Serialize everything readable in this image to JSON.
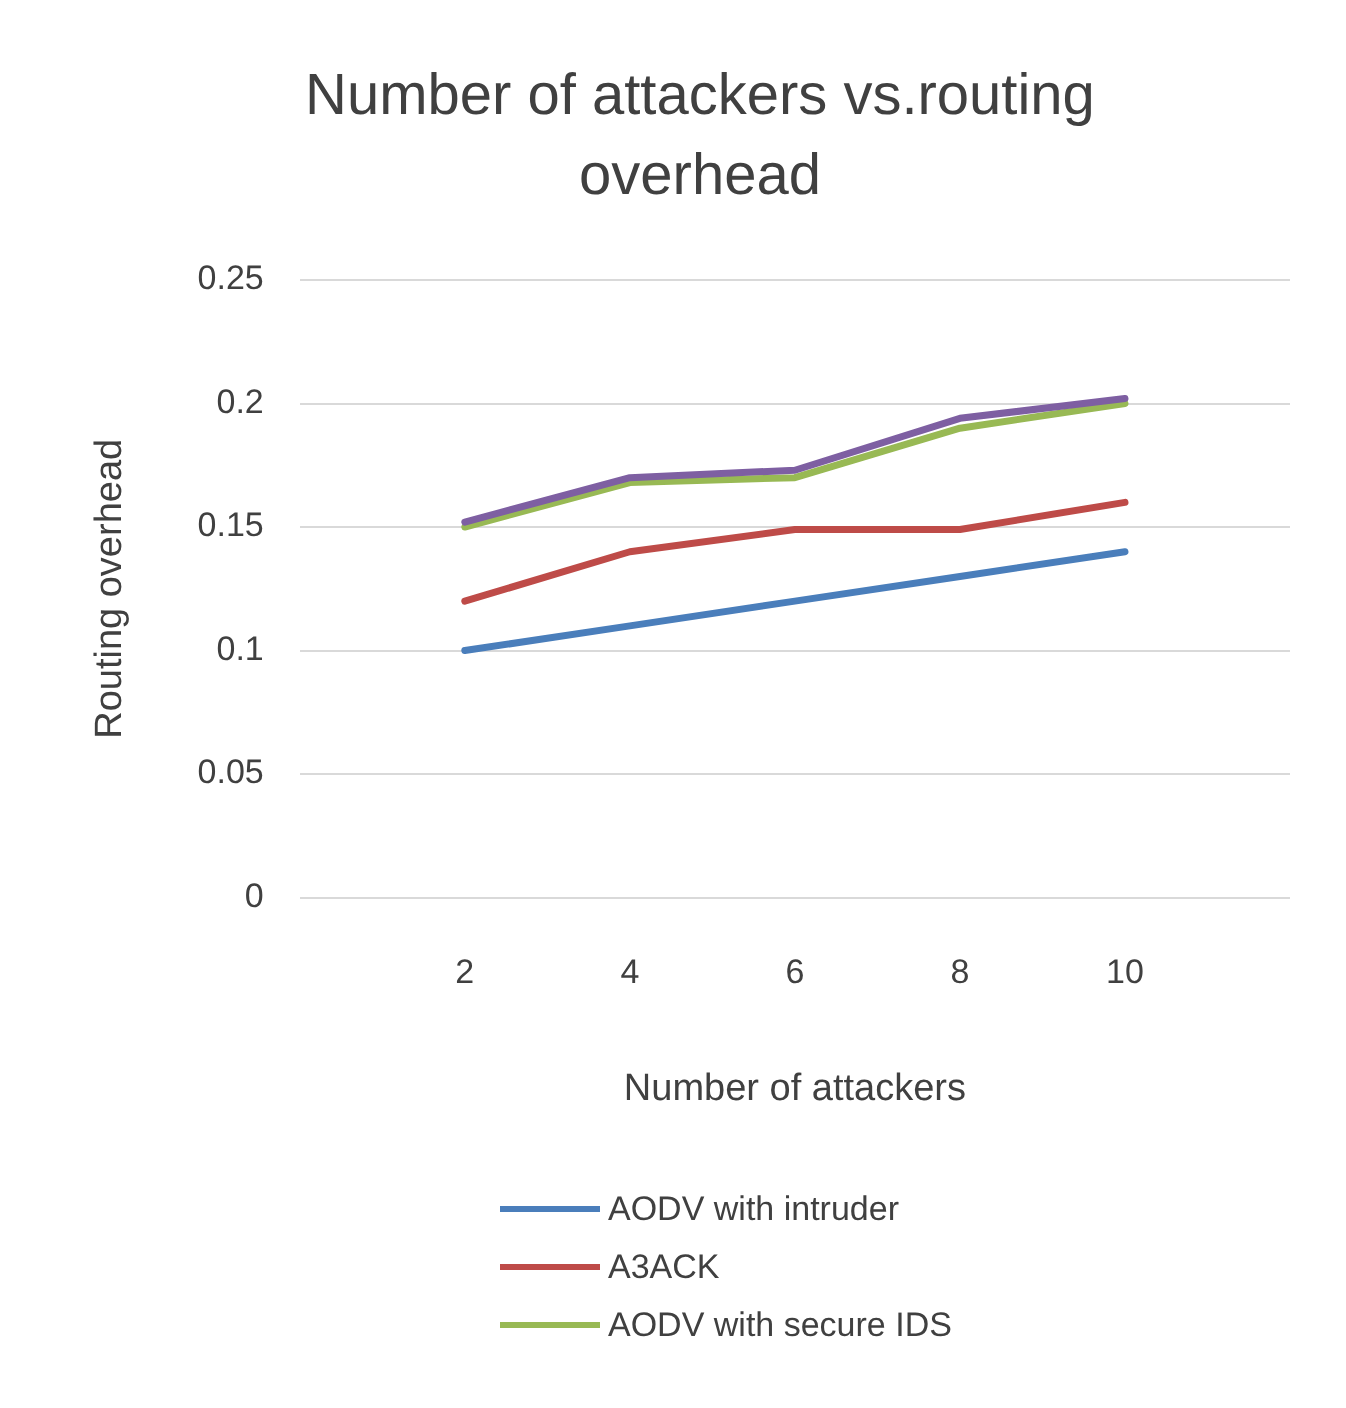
{
  "chart_data": {
    "type": "line",
    "title": "Number of attackers vs.routing overhead",
    "xlabel": "Number of attackers",
    "ylabel": "Routing overhead",
    "categories": [
      null,
      "2",
      "4",
      "6",
      "8",
      "10",
      null
    ],
    "series": [
      {
        "name": "AODV with intruder",
        "color": "#4a7ebb",
        "values": [
          null,
          0.1,
          0.11,
          0.12,
          0.13,
          0.14,
          null
        ]
      },
      {
        "name": "A3ACK",
        "color": "#be4b48",
        "values": [
          null,
          0.12,
          0.14,
          0.149,
          0.149,
          0.16,
          null
        ]
      },
      {
        "color": "#7e5fa2",
        "values": [
          null,
          0.152,
          0.17,
          0.173,
          0.194,
          0.202,
          null
        ]
      },
      {
        "name": "AODV with secure IDS",
        "color": "#98b954",
        "values": [
          null,
          0.15,
          0.168,
          0.17,
          0.19,
          0.2,
          null
        ]
      }
    ],
    "ylim": [
      0,
      0.25
    ],
    "yticks": [
      0,
      0.05,
      0.1,
      0.15,
      0.2,
      0.25
    ],
    "grid": "y",
    "legend": "bottom",
    "marker": "none",
    "line_style": "solid"
  }
}
